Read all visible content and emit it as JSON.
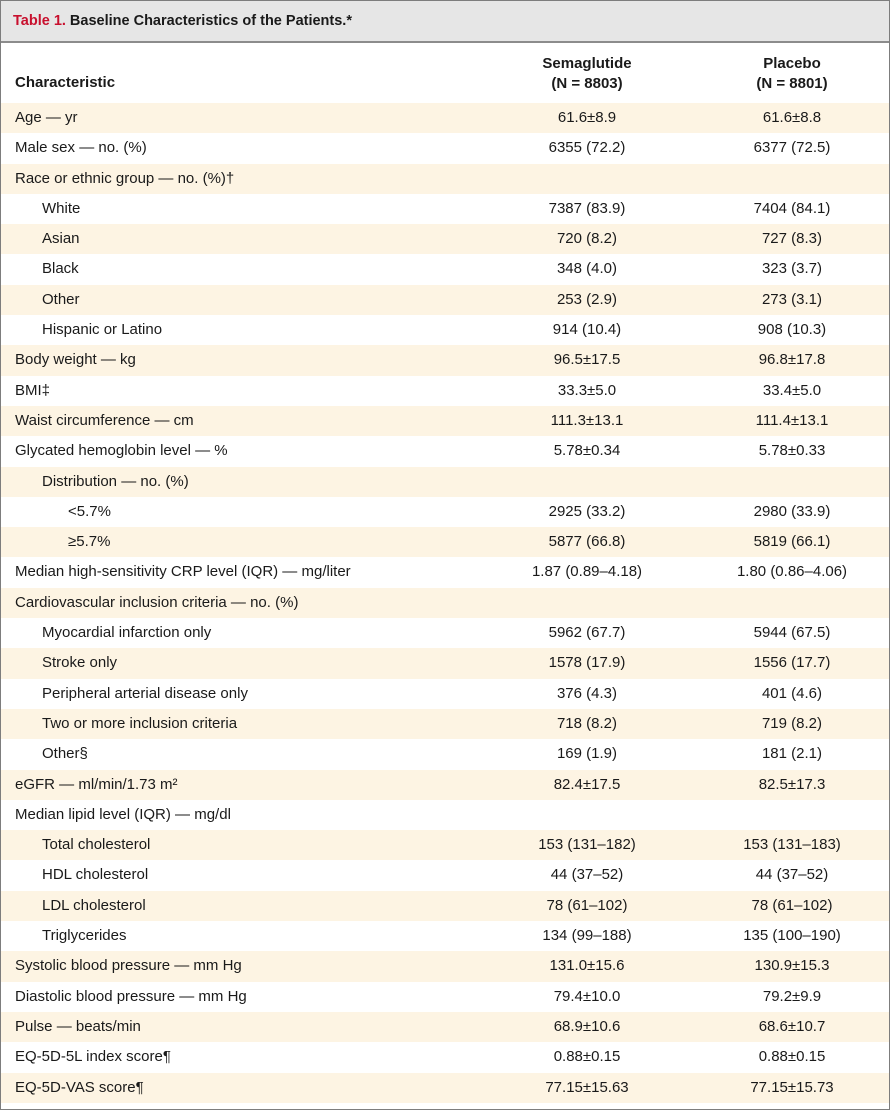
{
  "table": {
    "label": "Table 1.",
    "title": "Baseline Characteristics of the Patients.*",
    "headers": {
      "characteristic": "Characteristic",
      "semaglutide_name": "Semaglutide",
      "semaglutide_n": "(N = 8803)",
      "placebo_name": "Placebo",
      "placebo_n": "(N = 8801)"
    },
    "rows": [
      {
        "label": "Age — yr",
        "sema": "61.6±8.9",
        "placebo": "61.6±8.8"
      },
      {
        "label": "Male sex — no. (%)",
        "sema": "6355 (72.2)",
        "placebo": "6377 (72.5)"
      },
      {
        "label": "Race or ethnic group — no. (%)†",
        "sema": "",
        "placebo": ""
      },
      {
        "label": "White",
        "sema": "7387 (83.9)",
        "placebo": "7404 (84.1)"
      },
      {
        "label": "Asian",
        "sema": "720 (8.2)",
        "placebo": "727 (8.3)"
      },
      {
        "label": "Black",
        "sema": "348 (4.0)",
        "placebo": "323 (3.7)"
      },
      {
        "label": "Other",
        "sema": "253 (2.9)",
        "placebo": "273 (3.1)"
      },
      {
        "label": "Hispanic or Latino",
        "sema": "914 (10.4)",
        "placebo": "908 (10.3)"
      },
      {
        "label": "Body weight — kg",
        "sema": "96.5±17.5",
        "placebo": "96.8±17.8"
      },
      {
        "label": "BMI‡",
        "sema": "33.3±5.0",
        "placebo": "33.4±5.0"
      },
      {
        "label": "Waist circumference — cm",
        "sema": "111.3±13.1",
        "placebo": "111.4±13.1"
      },
      {
        "label": "Glycated hemoglobin level — %",
        "sema": "5.78±0.34",
        "placebo": "5.78±0.33"
      },
      {
        "label": "Distribution — no. (%)",
        "sema": "",
        "placebo": ""
      },
      {
        "label": "<5.7%",
        "sema": "2925 (33.2)",
        "placebo": "2980 (33.9)"
      },
      {
        "label": "≥5.7%",
        "sema": "5877 (66.8)",
        "placebo": "5819 (66.1)"
      },
      {
        "label": "Median high-sensitivity CRP level (IQR) — mg/liter",
        "sema": "1.87 (0.89–4.18)",
        "placebo": "1.80 (0.86–4.06)"
      },
      {
        "label": "Cardiovascular inclusion criteria — no. (%)",
        "sema": "",
        "placebo": ""
      },
      {
        "label": "Myocardial infarction only",
        "sema": "5962 (67.7)",
        "placebo": "5944 (67.5)"
      },
      {
        "label": "Stroke only",
        "sema": "1578 (17.9)",
        "placebo": "1556 (17.7)"
      },
      {
        "label": "Peripheral arterial disease only",
        "sema": "376 (4.3)",
        "placebo": "401 (4.6)"
      },
      {
        "label": "Two or more inclusion criteria",
        "sema": "718 (8.2)",
        "placebo": "719 (8.2)"
      },
      {
        "label": "Other§",
        "sema": "169 (1.9)",
        "placebo": "181 (2.1)"
      },
      {
        "label": "eGFR — ml/min/1.73 m²",
        "sema": "82.4±17.5",
        "placebo": "82.5±17.3"
      },
      {
        "label": "Median lipid level (IQR) — mg/dl",
        "sema": "",
        "placebo": ""
      },
      {
        "label": "Total cholesterol",
        "sema": "153 (131–182)",
        "placebo": "153 (131–183)"
      },
      {
        "label": "HDL cholesterol",
        "sema": "44 (37–52)",
        "placebo": "44 (37–52)"
      },
      {
        "label": "LDL cholesterol",
        "sema": "78 (61–102)",
        "placebo": "78 (61–102)"
      },
      {
        "label": "Triglycerides",
        "sema": "134 (99–188)",
        "placebo": "135 (100–190)"
      },
      {
        "label": "Systolic blood pressure — mm Hg",
        "sema": "131.0±15.6",
        "placebo": "130.9±15.3"
      },
      {
        "label": "Diastolic blood pressure — mm Hg",
        "sema": "79.4±10.0",
        "placebo": "79.2±9.9"
      },
      {
        "label": "Pulse — beats/min",
        "sema": "68.9±10.6",
        "placebo": "68.6±10.7"
      },
      {
        "label": "EQ-5D-5L index score¶",
        "sema": "0.88±0.15",
        "placebo": "0.88±0.15"
      },
      {
        "label": "EQ-5D-VAS score¶",
        "sema": "77.15±15.63",
        "placebo": "77.15±15.73"
      }
    ]
  },
  "colors": {
    "label_red": "#c8102e",
    "row_tint": "#fdf4e3",
    "title_bg": "#e6e6e6"
  }
}
